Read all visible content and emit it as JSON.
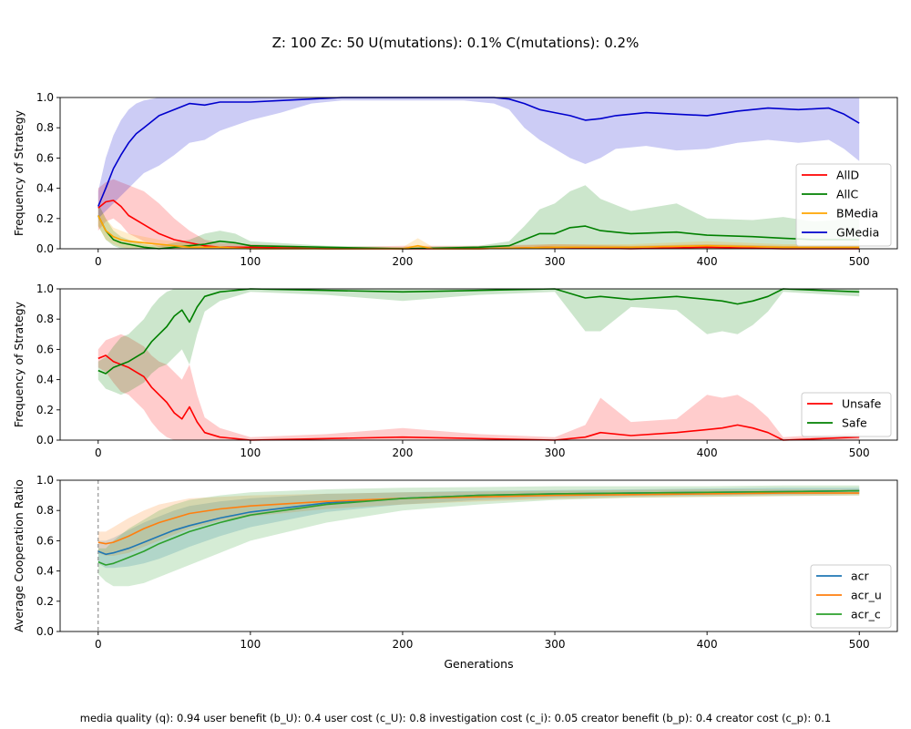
{
  "figure": {
    "suptitle": "Z: 100  Zc: 50  U(mutations): 0.1%  C(mutations): 0.2%",
    "footer": "media quality (q): 0.94  user benefit (b_U): 0.4  user cost (c_U): 0.8  investigation cost (c_i): 0.05  creator benefit (b_p): 0.4  creator cost (c_p): 0.1",
    "background": "#ffffff"
  },
  "chart_data": [
    {
      "type": "line",
      "title": "",
      "xlabel": "",
      "ylabel": "Frequency of Strategy",
      "xlim": [
        -25,
        525
      ],
      "ylim": [
        0,
        1
      ],
      "xticks": [
        0,
        100,
        200,
        300,
        400,
        500
      ],
      "yticks": [
        0.0,
        0.2,
        0.4,
        0.6,
        0.8,
        1.0
      ],
      "grid": false,
      "legend": "center-right",
      "series": [
        {
          "name": "AllD",
          "color": "#ff0000",
          "x": [
            0,
            5,
            10,
            15,
            20,
            30,
            40,
            50,
            60,
            70,
            80,
            100,
            150,
            200,
            250,
            300,
            350,
            400,
            450,
            500
          ],
          "values": [
            0.27,
            0.31,
            0.32,
            0.28,
            0.22,
            0.16,
            0.1,
            0.06,
            0.04,
            0.02,
            0.01,
            0.01,
            0.0,
            0.0,
            0.0,
            0.01,
            0.0,
            0.01,
            0.0,
            0.0
          ],
          "lower": [
            0.12,
            0.18,
            0.2,
            0.16,
            0.1,
            0.05,
            0.01,
            0.0,
            0.0,
            0.0,
            0.0,
            0.0,
            0.0,
            0.0,
            0.0,
            0.0,
            0.0,
            0.0,
            0.0,
            0.0
          ],
          "upper": [
            0.4,
            0.44,
            0.46,
            0.44,
            0.42,
            0.38,
            0.3,
            0.2,
            0.12,
            0.06,
            0.04,
            0.03,
            0.01,
            0.02,
            0.02,
            0.03,
            0.02,
            0.03,
            0.02,
            0.02
          ]
        },
        {
          "name": "AllC",
          "color": "#008000",
          "x": [
            0,
            5,
            10,
            15,
            20,
            30,
            40,
            50,
            60,
            70,
            80,
            90,
            100,
            150,
            200,
            250,
            270,
            280,
            290,
            300,
            310,
            320,
            330,
            350,
            380,
            400,
            430,
            450,
            470,
            500
          ],
          "values": [
            0.22,
            0.12,
            0.06,
            0.04,
            0.03,
            0.01,
            0.0,
            0.01,
            0.02,
            0.03,
            0.05,
            0.04,
            0.02,
            0.01,
            0.0,
            0.01,
            0.02,
            0.06,
            0.1,
            0.1,
            0.14,
            0.15,
            0.12,
            0.1,
            0.11,
            0.09,
            0.08,
            0.07,
            0.06,
            0.06
          ],
          "lower": [
            0.15,
            0.06,
            0.02,
            0.0,
            0.0,
            0.0,
            0.0,
            0.0,
            0.0,
            0.0,
            0.0,
            0.0,
            0.0,
            0.0,
            0.0,
            0.0,
            0.0,
            0.0,
            0.0,
            0.0,
            0.0,
            0.0,
            0.0,
            0.0,
            0.0,
            0.0,
            0.0,
            0.0,
            0.0,
            0.0
          ],
          "upper": [
            0.3,
            0.2,
            0.12,
            0.08,
            0.06,
            0.03,
            0.02,
            0.04,
            0.06,
            0.1,
            0.12,
            0.1,
            0.05,
            0.02,
            0.01,
            0.02,
            0.05,
            0.15,
            0.26,
            0.3,
            0.38,
            0.42,
            0.33,
            0.25,
            0.3,
            0.2,
            0.19,
            0.21,
            0.18,
            0.2
          ]
        },
        {
          "name": "BMedia",
          "color": "#ffa500",
          "x": [
            0,
            5,
            10,
            15,
            20,
            30,
            40,
            50,
            60,
            80,
            100,
            150,
            200,
            210,
            220,
            250,
            300,
            350,
            400,
            450,
            500
          ],
          "values": [
            0.22,
            0.12,
            0.08,
            0.06,
            0.05,
            0.04,
            0.03,
            0.02,
            0.01,
            0.01,
            0.0,
            0.0,
            0.0,
            0.02,
            0.0,
            0.0,
            0.01,
            0.01,
            0.02,
            0.01,
            0.01
          ],
          "lower": [
            0.15,
            0.06,
            0.03,
            0.01,
            0.0,
            0.0,
            0.0,
            0.0,
            0.0,
            0.0,
            0.0,
            0.0,
            0.0,
            0.0,
            0.0,
            0.0,
            0.0,
            0.0,
            0.0,
            0.0,
            0.0
          ],
          "upper": [
            0.3,
            0.2,
            0.14,
            0.12,
            0.1,
            0.08,
            0.06,
            0.05,
            0.03,
            0.02,
            0.01,
            0.01,
            0.01,
            0.07,
            0.01,
            0.01,
            0.03,
            0.03,
            0.05,
            0.03,
            0.03
          ]
        },
        {
          "name": "GMedia",
          "color": "#0000cd",
          "x": [
            0,
            5,
            10,
            15,
            20,
            25,
            30,
            40,
            50,
            60,
            70,
            80,
            100,
            120,
            140,
            160,
            200,
            240,
            260,
            270,
            280,
            290,
            300,
            310,
            320,
            330,
            340,
            360,
            380,
            400,
            420,
            440,
            460,
            480,
            490,
            500
          ],
          "values": [
            0.28,
            0.4,
            0.53,
            0.62,
            0.7,
            0.76,
            0.8,
            0.88,
            0.92,
            0.96,
            0.95,
            0.97,
            0.97,
            0.98,
            0.99,
            1.0,
            1.0,
            1.0,
            1.0,
            0.99,
            0.96,
            0.92,
            0.9,
            0.88,
            0.85,
            0.86,
            0.88,
            0.9,
            0.89,
            0.88,
            0.91,
            0.93,
            0.92,
            0.93,
            0.89,
            0.83
          ],
          "lower": [
            0.2,
            0.25,
            0.3,
            0.35,
            0.4,
            0.45,
            0.5,
            0.55,
            0.62,
            0.7,
            0.72,
            0.78,
            0.85,
            0.9,
            0.96,
            0.98,
            0.98,
            0.98,
            0.96,
            0.92,
            0.8,
            0.72,
            0.66,
            0.6,
            0.56,
            0.6,
            0.66,
            0.68,
            0.65,
            0.66,
            0.7,
            0.72,
            0.7,
            0.72,
            0.66,
            0.58
          ],
          "upper": [
            0.38,
            0.6,
            0.75,
            0.85,
            0.92,
            0.96,
            0.98,
            1.0,
            1.0,
            1.0,
            1.0,
            1.0,
            1.0,
            1.0,
            1.0,
            1.0,
            1.0,
            1.0,
            1.0,
            1.0,
            1.0,
            1.0,
            1.0,
            1.0,
            1.0,
            1.0,
            1.0,
            1.0,
            1.0,
            1.0,
            1.0,
            1.0,
            1.0,
            1.0,
            1.0,
            1.0
          ]
        }
      ]
    },
    {
      "type": "line",
      "title": "",
      "xlabel": "",
      "ylabel": "Frequency of Strategy",
      "xlim": [
        -25,
        525
      ],
      "ylim": [
        0,
        1
      ],
      "xticks": [
        0,
        100,
        200,
        300,
        400,
        500
      ],
      "yticks": [
        0.0,
        0.2,
        0.4,
        0.6,
        0.8,
        1.0
      ],
      "grid": false,
      "legend": "lower-right",
      "series": [
        {
          "name": "Unsafe",
          "color": "#ff0000",
          "x": [
            0,
            5,
            10,
            15,
            20,
            25,
            30,
            35,
            40,
            45,
            50,
            55,
            60,
            65,
            70,
            80,
            90,
            100,
            150,
            200,
            250,
            300,
            320,
            330,
            350,
            380,
            400,
            410,
            420,
            430,
            440,
            450,
            500
          ],
          "values": [
            0.54,
            0.56,
            0.52,
            0.5,
            0.48,
            0.45,
            0.42,
            0.35,
            0.3,
            0.25,
            0.18,
            0.14,
            0.22,
            0.12,
            0.05,
            0.02,
            0.01,
            0.0,
            0.01,
            0.02,
            0.01,
            0.0,
            0.02,
            0.05,
            0.03,
            0.05,
            0.07,
            0.08,
            0.1,
            0.08,
            0.05,
            0.0,
            0.02
          ],
          "lower": [
            0.48,
            0.45,
            0.38,
            0.32,
            0.3,
            0.25,
            0.2,
            0.12,
            0.06,
            0.02,
            0.0,
            0.0,
            0.0,
            0.0,
            0.0,
            0.0,
            0.0,
            0.0,
            0.0,
            0.0,
            0.0,
            0.0,
            0.0,
            0.0,
            0.0,
            0.0,
            0.0,
            0.0,
            0.0,
            0.0,
            0.0,
            0.0,
            0.0
          ],
          "upper": [
            0.6,
            0.66,
            0.68,
            0.7,
            0.68,
            0.65,
            0.62,
            0.56,
            0.52,
            0.5,
            0.45,
            0.4,
            0.5,
            0.3,
            0.15,
            0.08,
            0.05,
            0.02,
            0.04,
            0.08,
            0.04,
            0.02,
            0.1,
            0.28,
            0.12,
            0.14,
            0.3,
            0.28,
            0.3,
            0.24,
            0.15,
            0.02,
            0.05
          ]
        },
        {
          "name": "Safe",
          "color": "#008000",
          "x": [
            0,
            5,
            10,
            15,
            20,
            25,
            30,
            35,
            40,
            45,
            50,
            55,
            60,
            65,
            70,
            80,
            90,
            100,
            150,
            200,
            250,
            300,
            320,
            330,
            350,
            380,
            400,
            410,
            420,
            430,
            440,
            450,
            500
          ],
          "values": [
            0.46,
            0.44,
            0.48,
            0.5,
            0.52,
            0.55,
            0.58,
            0.65,
            0.7,
            0.75,
            0.82,
            0.86,
            0.78,
            0.88,
            0.95,
            0.98,
            0.99,
            1.0,
            0.99,
            0.98,
            0.99,
            1.0,
            0.94,
            0.95,
            0.93,
            0.95,
            0.93,
            0.92,
            0.9,
            0.92,
            0.95,
            1.0,
            0.98
          ],
          "lower": [
            0.4,
            0.34,
            0.32,
            0.3,
            0.32,
            0.35,
            0.38,
            0.44,
            0.48,
            0.5,
            0.55,
            0.6,
            0.5,
            0.7,
            0.85,
            0.92,
            0.95,
            0.98,
            0.96,
            0.92,
            0.96,
            0.98,
            0.72,
            0.72,
            0.88,
            0.86,
            0.7,
            0.72,
            0.7,
            0.76,
            0.85,
            0.98,
            0.95
          ],
          "upper": [
            0.52,
            0.55,
            0.62,
            0.68,
            0.7,
            0.75,
            0.8,
            0.88,
            0.94,
            0.98,
            1.0,
            1.0,
            1.0,
            1.0,
            1.0,
            1.0,
            1.0,
            1.0,
            1.0,
            1.0,
            1.0,
            1.0,
            1.0,
            1.0,
            1.0,
            1.0,
            1.0,
            1.0,
            1.0,
            1.0,
            1.0,
            1.0,
            1.0
          ]
        }
      ]
    },
    {
      "type": "line",
      "title": "",
      "xlabel": "Generations",
      "ylabel": "Average Cooperation Ratio",
      "xlim": [
        -25,
        525
      ],
      "ylim": [
        0,
        1
      ],
      "xticks": [
        0,
        100,
        200,
        300,
        400,
        500
      ],
      "yticks": [
        0.0,
        0.2,
        0.4,
        0.6,
        0.8,
        1.0
      ],
      "grid": false,
      "legend": "lower-right",
      "vline": {
        "x": 0,
        "style": "dashed",
        "color": "#808080"
      },
      "series": [
        {
          "name": "acr",
          "color": "#1f77b4",
          "x": [
            0,
            5,
            10,
            20,
            30,
            40,
            50,
            60,
            80,
            100,
            150,
            200,
            250,
            300,
            350,
            400,
            450,
            500
          ],
          "values": [
            0.53,
            0.51,
            0.52,
            0.55,
            0.59,
            0.63,
            0.67,
            0.7,
            0.75,
            0.79,
            0.85,
            0.88,
            0.9,
            0.91,
            0.915,
            0.92,
            0.925,
            0.93
          ],
          "lower": [
            0.45,
            0.42,
            0.42,
            0.43,
            0.45,
            0.48,
            0.52,
            0.56,
            0.63,
            0.69,
            0.79,
            0.84,
            0.87,
            0.885,
            0.895,
            0.9,
            0.905,
            0.91
          ],
          "upper": [
            0.6,
            0.6,
            0.62,
            0.67,
            0.72,
            0.76,
            0.8,
            0.83,
            0.86,
            0.88,
            0.91,
            0.92,
            0.93,
            0.935,
            0.94,
            0.945,
            0.95,
            0.95
          ]
        },
        {
          "name": "acr_u",
          "color": "#ff7f0e",
          "x": [
            0,
            5,
            10,
            20,
            30,
            40,
            50,
            60,
            80,
            100,
            150,
            200,
            250,
            300,
            350,
            400,
            450,
            500
          ],
          "values": [
            0.59,
            0.58,
            0.59,
            0.63,
            0.68,
            0.72,
            0.75,
            0.78,
            0.81,
            0.83,
            0.86,
            0.88,
            0.89,
            0.9,
            0.905,
            0.91,
            0.915,
            0.915
          ],
          "lower": [
            0.52,
            0.5,
            0.5,
            0.52,
            0.56,
            0.6,
            0.64,
            0.68,
            0.73,
            0.76,
            0.81,
            0.84,
            0.86,
            0.875,
            0.885,
            0.89,
            0.895,
            0.9
          ],
          "upper": [
            0.66,
            0.66,
            0.69,
            0.75,
            0.8,
            0.84,
            0.86,
            0.88,
            0.89,
            0.9,
            0.91,
            0.92,
            0.925,
            0.93,
            0.935,
            0.94,
            0.94,
            0.94
          ]
        },
        {
          "name": "acr_c",
          "color": "#2ca02c",
          "x": [
            0,
            5,
            10,
            20,
            30,
            40,
            50,
            60,
            80,
            100,
            150,
            200,
            250,
            300,
            350,
            400,
            450,
            500
          ],
          "values": [
            0.46,
            0.44,
            0.45,
            0.49,
            0.53,
            0.58,
            0.62,
            0.66,
            0.72,
            0.77,
            0.84,
            0.88,
            0.9,
            0.91,
            0.915,
            0.92,
            0.925,
            0.93
          ],
          "lower": [
            0.38,
            0.33,
            0.3,
            0.3,
            0.32,
            0.36,
            0.4,
            0.44,
            0.52,
            0.6,
            0.72,
            0.8,
            0.84,
            0.87,
            0.885,
            0.89,
            0.895,
            0.9
          ],
          "upper": [
            0.55,
            0.55,
            0.6,
            0.68,
            0.74,
            0.8,
            0.84,
            0.87,
            0.9,
            0.92,
            0.94,
            0.95,
            0.955,
            0.96,
            0.96,
            0.96,
            0.965,
            0.965
          ]
        }
      ]
    }
  ]
}
